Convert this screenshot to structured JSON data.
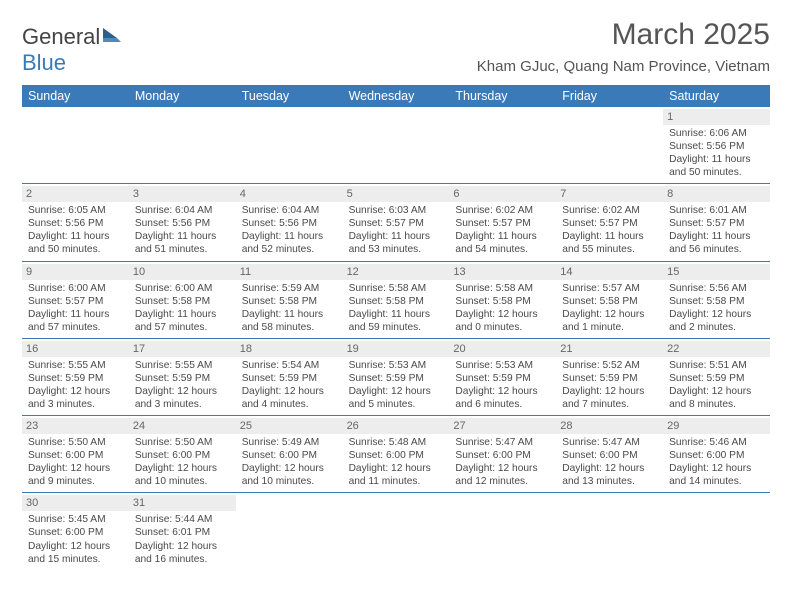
{
  "logo": {
    "general": "General",
    "blue": "Blue"
  },
  "title": {
    "month": "March 2025",
    "location": "Kham GJuc, Quang Nam Province, Vietnam"
  },
  "colors": {
    "headerBg": "#3b7ab8",
    "headerText": "#ffffff",
    "numBg": "#ededed",
    "border": "#3b7ab8"
  },
  "dayNames": [
    "Sunday",
    "Monday",
    "Tuesday",
    "Wednesday",
    "Thursday",
    "Friday",
    "Saturday"
  ],
  "weeks": [
    [
      {
        "blank": true
      },
      {
        "blank": true
      },
      {
        "blank": true
      },
      {
        "blank": true
      },
      {
        "blank": true
      },
      {
        "blank": true
      },
      {
        "num": "1",
        "sunrise": "Sunrise: 6:06 AM",
        "sunset": "Sunset: 5:56 PM",
        "daylight": "Daylight: 11 hours and 50 minutes."
      }
    ],
    [
      {
        "num": "2",
        "sunrise": "Sunrise: 6:05 AM",
        "sunset": "Sunset: 5:56 PM",
        "daylight": "Daylight: 11 hours and 50 minutes."
      },
      {
        "num": "3",
        "sunrise": "Sunrise: 6:04 AM",
        "sunset": "Sunset: 5:56 PM",
        "daylight": "Daylight: 11 hours and 51 minutes."
      },
      {
        "num": "4",
        "sunrise": "Sunrise: 6:04 AM",
        "sunset": "Sunset: 5:56 PM",
        "daylight": "Daylight: 11 hours and 52 minutes."
      },
      {
        "num": "5",
        "sunrise": "Sunrise: 6:03 AM",
        "sunset": "Sunset: 5:57 PM",
        "daylight": "Daylight: 11 hours and 53 minutes."
      },
      {
        "num": "6",
        "sunrise": "Sunrise: 6:02 AM",
        "sunset": "Sunset: 5:57 PM",
        "daylight": "Daylight: 11 hours and 54 minutes."
      },
      {
        "num": "7",
        "sunrise": "Sunrise: 6:02 AM",
        "sunset": "Sunset: 5:57 PM",
        "daylight": "Daylight: 11 hours and 55 minutes."
      },
      {
        "num": "8",
        "sunrise": "Sunrise: 6:01 AM",
        "sunset": "Sunset: 5:57 PM",
        "daylight": "Daylight: 11 hours and 56 minutes."
      }
    ],
    [
      {
        "num": "9",
        "sunrise": "Sunrise: 6:00 AM",
        "sunset": "Sunset: 5:57 PM",
        "daylight": "Daylight: 11 hours and 57 minutes."
      },
      {
        "num": "10",
        "sunrise": "Sunrise: 6:00 AM",
        "sunset": "Sunset: 5:58 PM",
        "daylight": "Daylight: 11 hours and 57 minutes."
      },
      {
        "num": "11",
        "sunrise": "Sunrise: 5:59 AM",
        "sunset": "Sunset: 5:58 PM",
        "daylight": "Daylight: 11 hours and 58 minutes."
      },
      {
        "num": "12",
        "sunrise": "Sunrise: 5:58 AM",
        "sunset": "Sunset: 5:58 PM",
        "daylight": "Daylight: 11 hours and 59 minutes."
      },
      {
        "num": "13",
        "sunrise": "Sunrise: 5:58 AM",
        "sunset": "Sunset: 5:58 PM",
        "daylight": "Daylight: 12 hours and 0 minutes."
      },
      {
        "num": "14",
        "sunrise": "Sunrise: 5:57 AM",
        "sunset": "Sunset: 5:58 PM",
        "daylight": "Daylight: 12 hours and 1 minute."
      },
      {
        "num": "15",
        "sunrise": "Sunrise: 5:56 AM",
        "sunset": "Sunset: 5:58 PM",
        "daylight": "Daylight: 12 hours and 2 minutes."
      }
    ],
    [
      {
        "num": "16",
        "sunrise": "Sunrise: 5:55 AM",
        "sunset": "Sunset: 5:59 PM",
        "daylight": "Daylight: 12 hours and 3 minutes."
      },
      {
        "num": "17",
        "sunrise": "Sunrise: 5:55 AM",
        "sunset": "Sunset: 5:59 PM",
        "daylight": "Daylight: 12 hours and 3 minutes."
      },
      {
        "num": "18",
        "sunrise": "Sunrise: 5:54 AM",
        "sunset": "Sunset: 5:59 PM",
        "daylight": "Daylight: 12 hours and 4 minutes."
      },
      {
        "num": "19",
        "sunrise": "Sunrise: 5:53 AM",
        "sunset": "Sunset: 5:59 PM",
        "daylight": "Daylight: 12 hours and 5 minutes."
      },
      {
        "num": "20",
        "sunrise": "Sunrise: 5:53 AM",
        "sunset": "Sunset: 5:59 PM",
        "daylight": "Daylight: 12 hours and 6 minutes."
      },
      {
        "num": "21",
        "sunrise": "Sunrise: 5:52 AM",
        "sunset": "Sunset: 5:59 PM",
        "daylight": "Daylight: 12 hours and 7 minutes."
      },
      {
        "num": "22",
        "sunrise": "Sunrise: 5:51 AM",
        "sunset": "Sunset: 5:59 PM",
        "daylight": "Daylight: 12 hours and 8 minutes."
      }
    ],
    [
      {
        "num": "23",
        "sunrise": "Sunrise: 5:50 AM",
        "sunset": "Sunset: 6:00 PM",
        "daylight": "Daylight: 12 hours and 9 minutes."
      },
      {
        "num": "24",
        "sunrise": "Sunrise: 5:50 AM",
        "sunset": "Sunset: 6:00 PM",
        "daylight": "Daylight: 12 hours and 10 minutes."
      },
      {
        "num": "25",
        "sunrise": "Sunrise: 5:49 AM",
        "sunset": "Sunset: 6:00 PM",
        "daylight": "Daylight: 12 hours and 10 minutes."
      },
      {
        "num": "26",
        "sunrise": "Sunrise: 5:48 AM",
        "sunset": "Sunset: 6:00 PM",
        "daylight": "Daylight: 12 hours and 11 minutes."
      },
      {
        "num": "27",
        "sunrise": "Sunrise: 5:47 AM",
        "sunset": "Sunset: 6:00 PM",
        "daylight": "Daylight: 12 hours and 12 minutes."
      },
      {
        "num": "28",
        "sunrise": "Sunrise: 5:47 AM",
        "sunset": "Sunset: 6:00 PM",
        "daylight": "Daylight: 12 hours and 13 minutes."
      },
      {
        "num": "29",
        "sunrise": "Sunrise: 5:46 AM",
        "sunset": "Sunset: 6:00 PM",
        "daylight": "Daylight: 12 hours and 14 minutes."
      }
    ],
    [
      {
        "num": "30",
        "sunrise": "Sunrise: 5:45 AM",
        "sunset": "Sunset: 6:00 PM",
        "daylight": "Daylight: 12 hours and 15 minutes."
      },
      {
        "num": "31",
        "sunrise": "Sunrise: 5:44 AM",
        "sunset": "Sunset: 6:01 PM",
        "daylight": "Daylight: 12 hours and 16 minutes."
      },
      {
        "blank": true
      },
      {
        "blank": true
      },
      {
        "blank": true
      },
      {
        "blank": true
      },
      {
        "blank": true
      }
    ]
  ]
}
